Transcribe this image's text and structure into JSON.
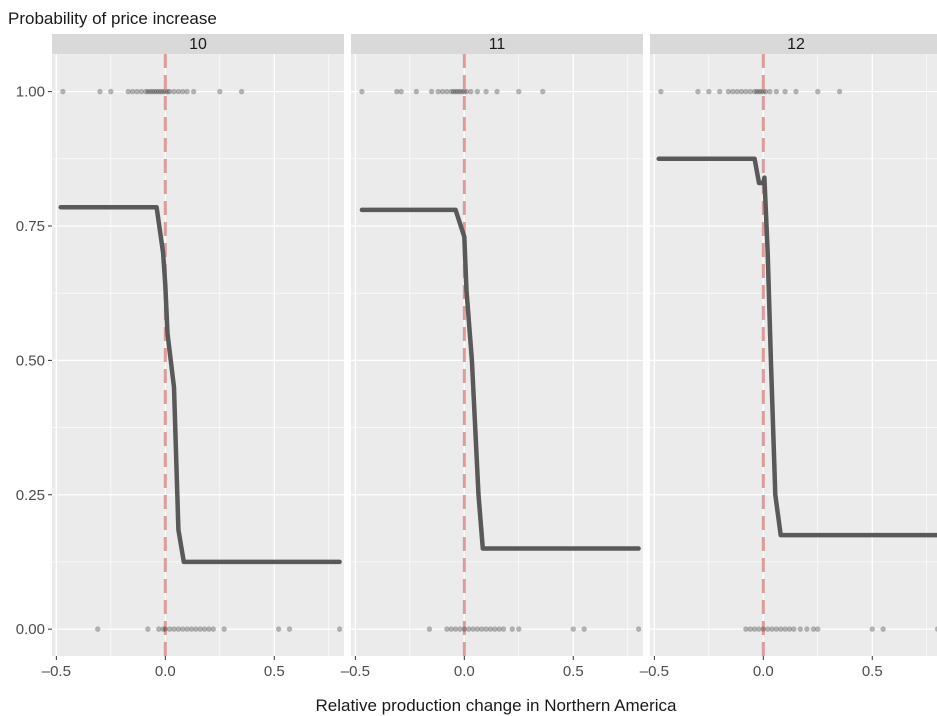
{
  "chart_data": {
    "type": "line",
    "title": "",
    "ylabel": "Probability of price increase",
    "xlabel": "Relative production change in Northern America",
    "xlim": [
      -0.52,
      0.82
    ],
    "ylim": [
      -0.05,
      1.07
    ],
    "x_ticks": [
      -0.5,
      0.0,
      0.5
    ],
    "x_tick_labels": [
      "–0.5",
      "0.0",
      "0.5"
    ],
    "y_ticks": [
      0.0,
      0.25,
      0.5,
      0.75,
      1.0
    ],
    "y_tick_labels": [
      "0.00",
      "0.25",
      "0.50",
      "0.75",
      "1.00"
    ],
    "reference_line_x": 0.0,
    "colors": {
      "panel_bg": "#ebebeb",
      "strip_bg": "#d9d9d9",
      "grid": "#ffffff",
      "curve": "#595959",
      "points": "#333333",
      "reference": "#d98c8c"
    },
    "panels": [
      {
        "label": "10",
        "curve": {
          "x": [
            -0.48,
            -0.04,
            -0.01,
            0.0,
            0.01,
            0.04,
            0.06,
            0.085,
            0.8
          ],
          "y": [
            0.785,
            0.785,
            0.7,
            0.64,
            0.55,
            0.45,
            0.185,
            0.125,
            0.125
          ]
        },
        "points_top": [
          -0.47,
          -0.3,
          -0.25,
          -0.17,
          -0.15,
          -0.13,
          -0.11,
          -0.09,
          -0.08,
          -0.07,
          -0.06,
          -0.05,
          -0.04,
          -0.03,
          -0.02,
          -0.01,
          0.0,
          0.01,
          0.02,
          0.04,
          0.06,
          0.08,
          0.1,
          0.13,
          0.25,
          0.35
        ],
        "points_bottom": [
          -0.31,
          -0.08,
          -0.03,
          -0.01,
          0.0,
          0.02,
          0.04,
          0.06,
          0.08,
          0.1,
          0.12,
          0.14,
          0.16,
          0.18,
          0.2,
          0.22,
          0.27,
          0.52,
          0.57,
          0.8
        ]
      },
      {
        "label": "11",
        "curve": {
          "x": [
            -0.47,
            -0.04,
            0.0,
            0.01,
            0.035,
            0.065,
            0.085,
            0.8
          ],
          "y": [
            0.78,
            0.78,
            0.73,
            0.63,
            0.5,
            0.25,
            0.15,
            0.15
          ]
        },
        "points_top": [
          -0.47,
          -0.31,
          -0.29,
          -0.22,
          -0.15,
          -0.12,
          -0.1,
          -0.08,
          -0.06,
          -0.05,
          -0.04,
          -0.03,
          -0.02,
          -0.01,
          0.0,
          0.01,
          0.03,
          0.06,
          0.1,
          0.15,
          0.25,
          0.36
        ],
        "points_bottom": [
          -0.16,
          -0.08,
          -0.06,
          -0.04,
          -0.02,
          0.0,
          0.02,
          0.04,
          0.06,
          0.08,
          0.1,
          0.12,
          0.14,
          0.16,
          0.18,
          0.22,
          0.25,
          0.5,
          0.55,
          0.8
        ]
      },
      {
        "label": "12",
        "curve": {
          "x": [
            -0.48,
            -0.04,
            -0.02,
            0.0,
            0.005,
            0.02,
            0.035,
            0.055,
            0.08,
            0.8
          ],
          "y": [
            0.875,
            0.875,
            0.83,
            0.83,
            0.84,
            0.7,
            0.5,
            0.25,
            0.175,
            0.175
          ]
        },
        "points_top": [
          -0.47,
          -0.3,
          -0.25,
          -0.2,
          -0.16,
          -0.14,
          -0.12,
          -0.1,
          -0.08,
          -0.06,
          -0.04,
          -0.03,
          -0.02,
          -0.01,
          0.0,
          0.01,
          0.03,
          0.06,
          0.1,
          0.15,
          0.25,
          0.35
        ],
        "points_bottom": [
          -0.08,
          -0.06,
          -0.04,
          -0.02,
          0.0,
          0.02,
          0.04,
          0.06,
          0.08,
          0.1,
          0.12,
          0.14,
          0.17,
          0.2,
          0.23,
          0.25,
          0.5,
          0.55,
          0.8
        ]
      }
    ]
  }
}
